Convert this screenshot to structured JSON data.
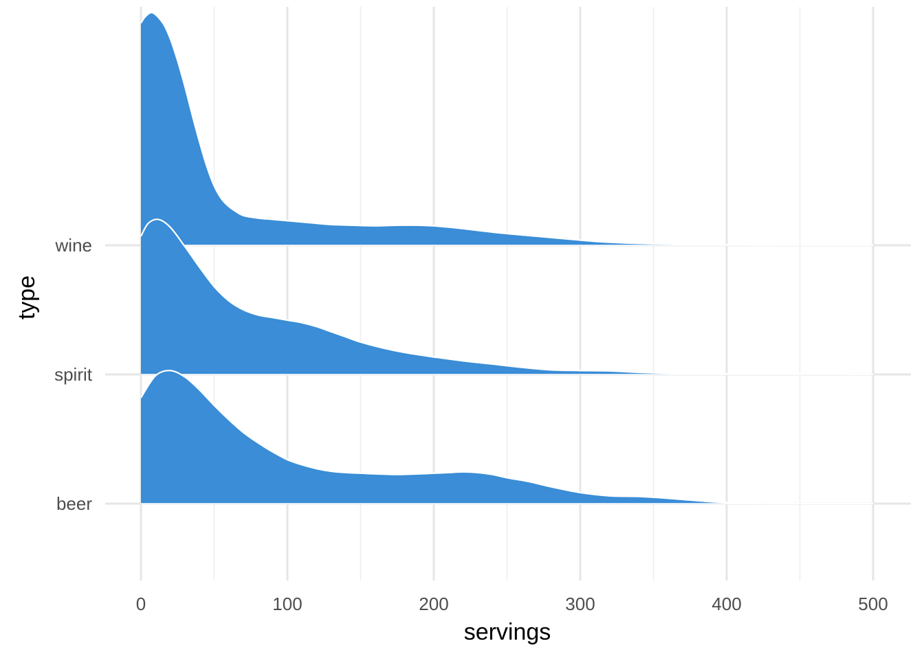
{
  "chart_data": {
    "type": "area",
    "subtype": "ridgeline",
    "title": "",
    "xlabel": "servings",
    "ylabel": "type",
    "xlim": [
      0,
      525
    ],
    "x_ticks": [
      0,
      100,
      200,
      300,
      400,
      500
    ],
    "x_tick_labels": [
      "0",
      "100",
      "200",
      "300",
      "400",
      "500"
    ],
    "categories": [
      "beer",
      "spirit",
      "wine"
    ],
    "fill_color": "#3A8DD6",
    "outline_color": "#FFFFFF",
    "grid": true,
    "legend": "none",
    "y_unit": "ridge height as fraction of one row spacing",
    "series": [
      {
        "name": "beer",
        "x": [
          0,
          10,
          20,
          30,
          40,
          50,
          60,
          70,
          80,
          90,
          100,
          110,
          120,
          130,
          140,
          150,
          160,
          175,
          190,
          200,
          210,
          220,
          230,
          240,
          250,
          265,
          280,
          300,
          320,
          340,
          355,
          370,
          385,
          400,
          415,
          430,
          450,
          475,
          500
        ],
        "y": [
          0.82,
          0.99,
          1.03,
          0.98,
          0.88,
          0.76,
          0.65,
          0.55,
          0.47,
          0.4,
          0.34,
          0.3,
          0.27,
          0.25,
          0.24,
          0.235,
          0.23,
          0.225,
          0.23,
          0.235,
          0.24,
          0.245,
          0.24,
          0.225,
          0.2,
          0.17,
          0.13,
          0.085,
          0.06,
          0.055,
          0.045,
          0.032,
          0.018,
          0.008,
          0.003,
          0.0015,
          0.001,
          0.001,
          0.001
        ]
      },
      {
        "name": "spirit",
        "x": [
          0,
          5,
          12,
          20,
          30,
          40,
          50,
          60,
          70,
          80,
          90,
          100,
          110,
          120,
          130,
          140,
          150,
          165,
          180,
          200,
          220,
          240,
          260,
          280,
          300,
          320,
          340,
          360,
          380,
          400,
          420,
          440,
          460,
          480,
          500
        ],
        "y": [
          1.07,
          1.17,
          1.2,
          1.14,
          0.99,
          0.83,
          0.68,
          0.57,
          0.5,
          0.46,
          0.44,
          0.42,
          0.4,
          0.37,
          0.33,
          0.29,
          0.25,
          0.205,
          0.17,
          0.135,
          0.105,
          0.08,
          0.055,
          0.035,
          0.03,
          0.027,
          0.016,
          0.009,
          0.006,
          0.005,
          0.005,
          0.006,
          0.006,
          0.002,
          0.001
        ]
      },
      {
        "name": "wine",
        "x": [
          0,
          3,
          8,
          15,
          20,
          25,
          30,
          35,
          40,
          45,
          50,
          55,
          60,
          65,
          70,
          80,
          90,
          100,
          115,
          130,
          145,
          160,
          175,
          190,
          200,
          215,
          230,
          250,
          270,
          290,
          310,
          330,
          350,
          370,
          390,
          400,
          420,
          450,
          480,
          500
        ],
        "y": [
          1.72,
          1.77,
          1.8,
          1.72,
          1.6,
          1.43,
          1.23,
          1.01,
          0.8,
          0.61,
          0.46,
          0.36,
          0.3,
          0.26,
          0.23,
          0.21,
          0.2,
          0.19,
          0.175,
          0.16,
          0.155,
          0.15,
          0.155,
          0.155,
          0.15,
          0.135,
          0.115,
          0.09,
          0.07,
          0.05,
          0.03,
          0.018,
          0.012,
          0.008,
          0.005,
          0.004,
          0.002,
          0.001,
          0.001,
          0.001
        ]
      }
    ]
  }
}
